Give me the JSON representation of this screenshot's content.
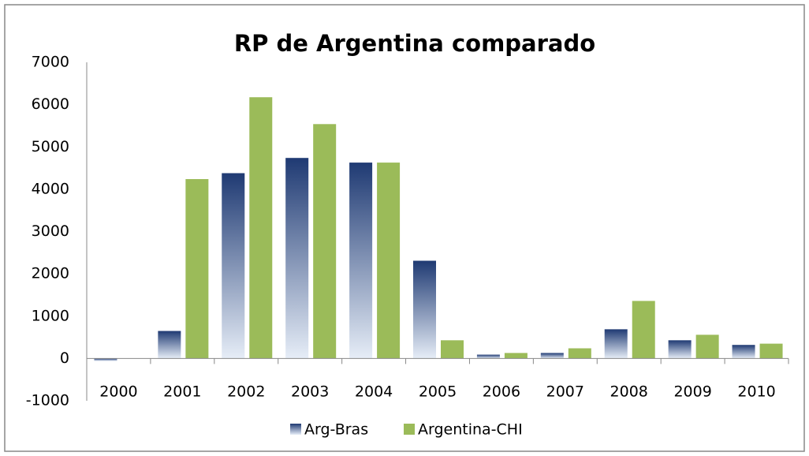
{
  "chart_data": {
    "type": "bar",
    "title": "RP de Argentina comparado",
    "categories": [
      "2000",
      "2001",
      "2002",
      "2003",
      "2004",
      "2005",
      "2006",
      "2007",
      "2008",
      "2009",
      "2010"
    ],
    "series": [
      {
        "name": "Arg-Bras",
        "color": "#1f3a73",
        "values": [
          -60,
          650,
          4380,
          4740,
          4630,
          2310,
          90,
          130,
          690,
          430,
          320
        ]
      },
      {
        "name": "Argentina-CHI",
        "color": "#9bbb59",
        "values": [
          0,
          4240,
          6175,
          5540,
          4630,
          430,
          130,
          240,
          1360,
          560,
          350
        ]
      }
    ],
    "ylim": [
      -1000,
      7000
    ],
    "yticks": [
      -1000,
      0,
      1000,
      2000,
      3000,
      4000,
      5000,
      6000,
      7000
    ],
    "grid": false,
    "legend": "bottom"
  }
}
